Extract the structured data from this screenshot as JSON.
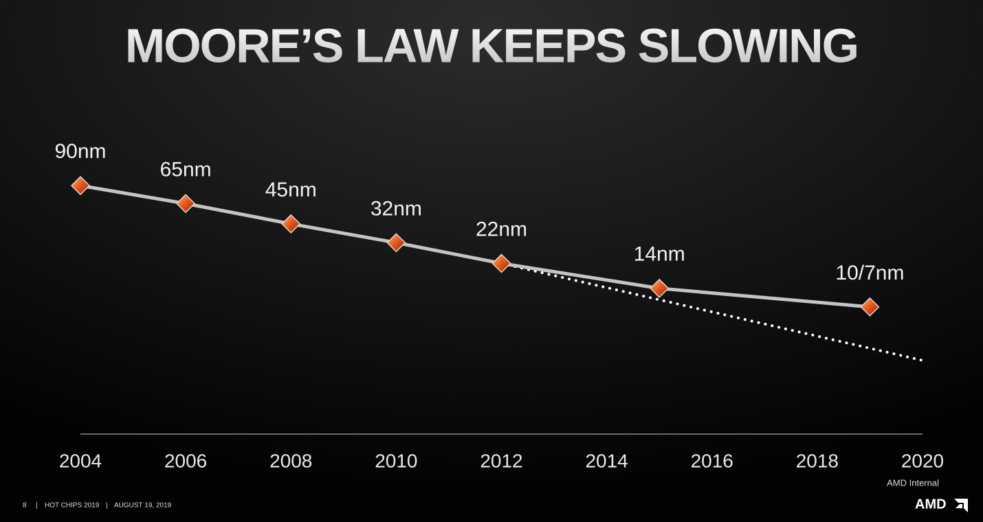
{
  "chart_data": {
    "type": "line",
    "title": "MOORE’S LAW KEEPS SLOWING",
    "xlim": [
      2004,
      2020
    ],
    "xticks": [
      2004,
      2006,
      2008,
      2010,
      2012,
      2014,
      2016,
      2018,
      2020
    ],
    "ylim": [
      1,
      200
    ],
    "log_scale": true,
    "grid": false,
    "series": [
      {
        "x": [
          2004,
          2006,
          2008,
          2010,
          2012,
          2015,
          2019
        ],
        "values": [
          90,
          65,
          45,
          32,
          22,
          14,
          10
        ],
        "value_labels": [
          "90nm",
          "65nm",
          "45nm",
          "32nm",
          "22nm",
          "14nm",
          "10/7nm"
        ],
        "color": "#c4c4c4",
        "marker_color": "#e2561a",
        "line_style": "solid"
      },
      {
        "x": [
          2012,
          2020
        ],
        "values": [
          22,
          3.8
        ],
        "color": "#ffffff",
        "line_style": "dotted"
      }
    ]
  },
  "footer": {
    "page": "8",
    "event": "HOT CHIPS 2019",
    "date": "AUGUST 19, 2019",
    "note": "AMD Internal",
    "logo": "AMD"
  }
}
